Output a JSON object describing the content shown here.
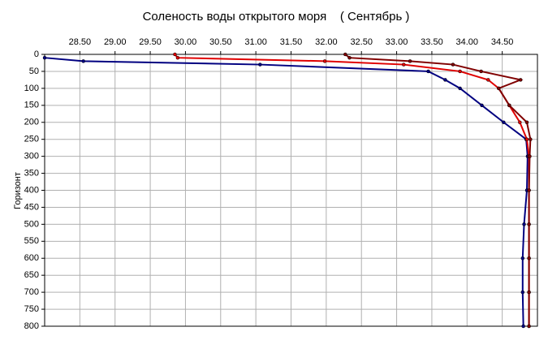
{
  "chart_data": {
    "type": "line",
    "orientation": "horizontal",
    "title": "Соленость воды открытого моря    ( Сентябрь )",
    "y_label": "Горизонт",
    "y": [
      0,
      10,
      20,
      30,
      50,
      75,
      100,
      150,
      200,
      250,
      300,
      400,
      500,
      600,
      700,
      800
    ],
    "series": [
      {
        "color": "#000080",
        "values": [
          null,
          28.0,
          28.55,
          31.06,
          33.45,
          33.69,
          33.9,
          34.21,
          34.52,
          34.84,
          34.86,
          34.85,
          34.81,
          34.79,
          34.79,
          34.8
        ]
      },
      {
        "color": "#e00000",
        "values": [
          29.85,
          29.89,
          31.98,
          33.1,
          33.9,
          34.3,
          34.45,
          34.6,
          34.75,
          34.85,
          34.88,
          34.88,
          34.88,
          34.88,
          34.88,
          34.88
        ]
      },
      {
        "color": "#800000",
        "values": [
          32.27,
          32.33,
          33.19,
          33.8,
          34.2,
          34.76,
          34.45,
          34.6,
          34.85,
          34.9,
          34.89,
          34.88,
          34.88,
          34.88,
          34.88,
          34.88
        ]
      }
    ],
    "xlim": [
      28.0,
      35.0
    ],
    "xticks": [
      {
        "value": 28.5,
        "label": "28.50"
      },
      {
        "value": 29,
        "label": "29.00"
      },
      {
        "value": 29.5,
        "label": "29.50"
      },
      {
        "value": 30,
        "label": "30.00"
      },
      {
        "value": 30.5,
        "label": "30.50"
      },
      {
        "value": 31,
        "label": "31.00"
      },
      {
        "value": 31.5,
        "label": "31.50"
      },
      {
        "value": 32,
        "label": "32.00"
      },
      {
        "value": 32.5,
        "label": "32.50"
      },
      {
        "value": 33,
        "label": "33.00"
      },
      {
        "value": 33.5,
        "label": "33.50"
      },
      {
        "value": 34,
        "label": "34.00"
      },
      {
        "value": 34.5,
        "label": "34.50"
      }
    ],
    "ylim": [
      0,
      800
    ],
    "yticks": [
      0,
      50,
      100,
      150,
      200,
      250,
      300,
      350,
      400,
      450,
      500,
      550,
      600,
      650,
      700,
      750,
      800
    ],
    "y_inverted": true,
    "grid": true
  }
}
